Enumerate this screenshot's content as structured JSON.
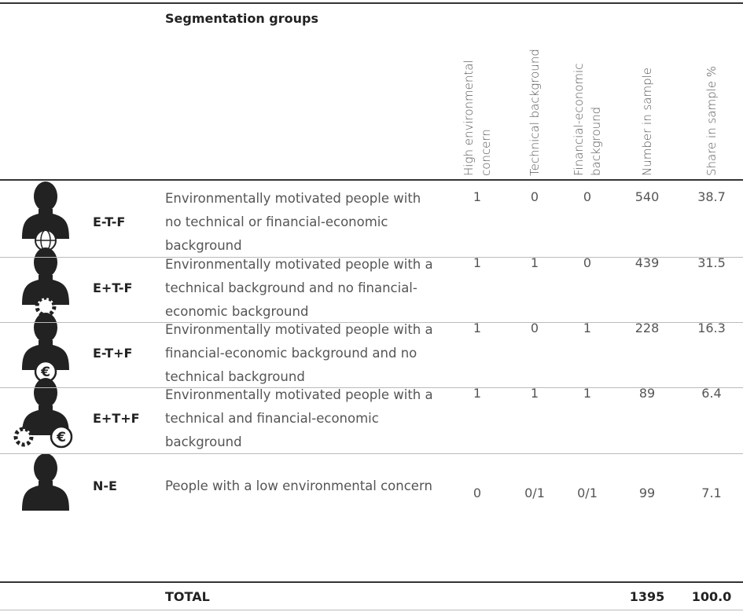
{
  "header": {
    "title": "Segmentation groups",
    "columns": [
      "High environmental concern",
      "Technical background",
      "Financial-economic background",
      "Number in sample",
      "Share in sample %"
    ]
  },
  "rows": [
    {
      "code": "E-T-F",
      "description": "Environmentally motivated people with no technical or financial-economic background",
      "values": [
        "1",
        "0",
        "0",
        "540",
        "38.7"
      ]
    },
    {
      "code": "E+T-F",
      "description": "Environmentally motivated people with a technical background and no financial-economic background",
      "values": [
        "1",
        "1",
        "0",
        "439",
        "31.5"
      ]
    },
    {
      "code": "E-T+F",
      "description": "Environmentally motivated people with a financial-economic background and no technical background",
      "values": [
        "1",
        "0",
        "1",
        "228",
        "16.3"
      ]
    },
    {
      "code": "E+T+F",
      "description": "Environmentally motivated people with a technical and financial-economic background",
      "values": [
        "1",
        "1",
        "1",
        "89",
        "6.4"
      ]
    },
    {
      "code": "N-E",
      "description": "People with a low environmental concern",
      "values": [
        "0",
        "0/1",
        "0/1",
        "99",
        "7.1"
      ]
    }
  ],
  "total": {
    "label": "TOTAL",
    "values": [
      "1395",
      "100.0"
    ]
  }
}
